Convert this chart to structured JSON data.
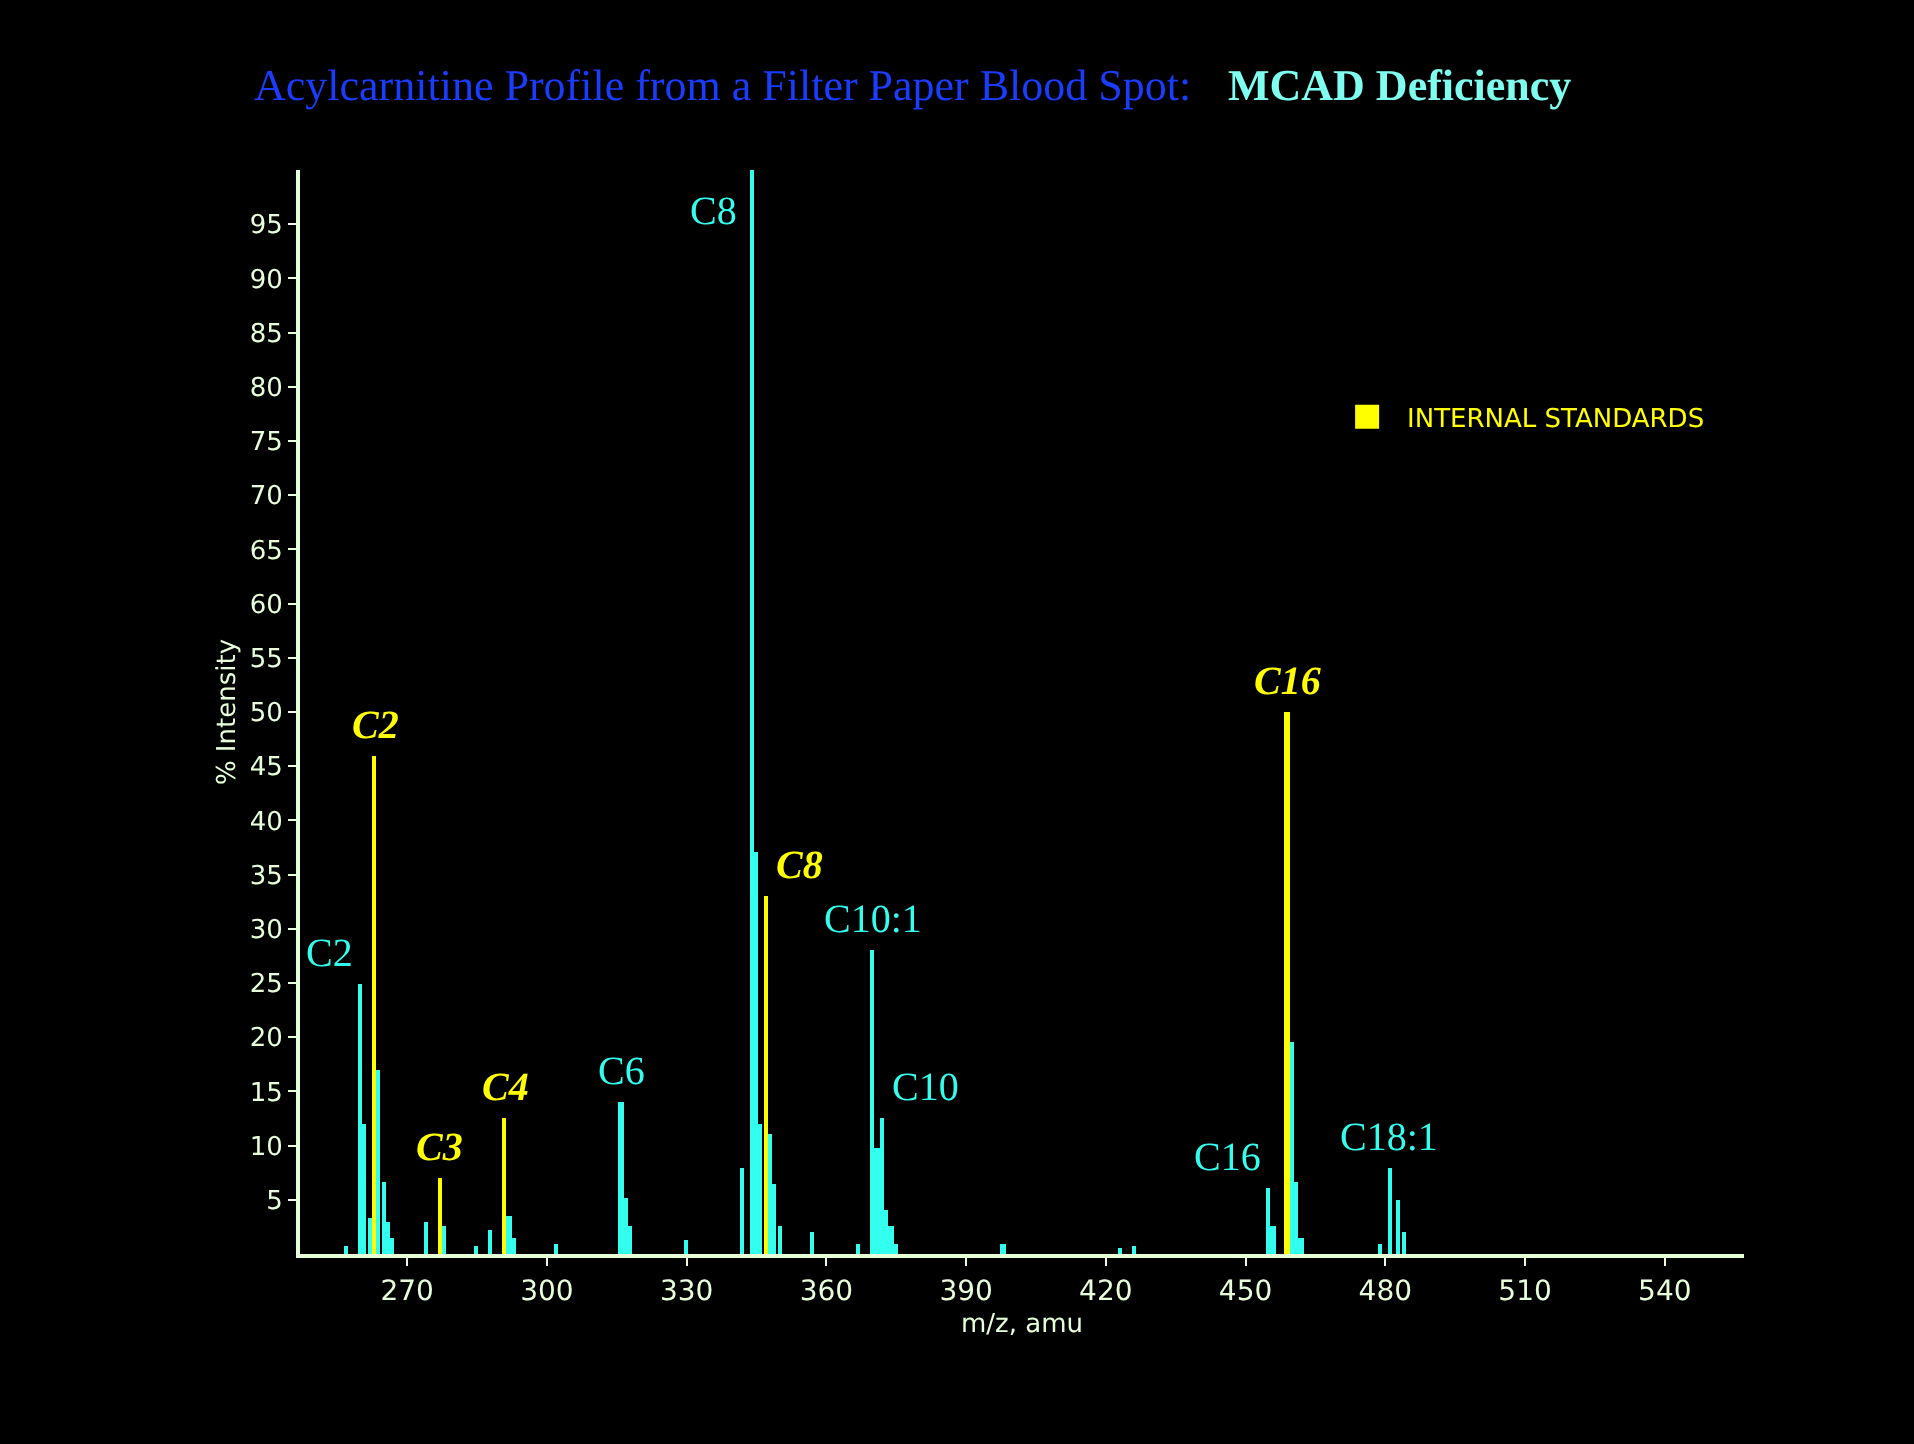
{
  "chart_data": {
    "type": "bar",
    "title": "Acylcarnitine Profile from a Filter Paper Blood Spot:",
    "subtitle": "MCAD Deficiency",
    "xlabel": "m/z, amu",
    "ylabel": "% Intensity",
    "series": [
      {
        "color": "#33ffee",
        "x": [
          257,
          260,
          261,
          262,
          264,
          265,
          266,
          267,
          274,
          278,
          285,
          288,
          292,
          293,
          302,
          316,
          317,
          318,
          330,
          342,
          344,
          345,
          346,
          348,
          349,
          350,
          357,
          367,
          370,
          371,
          372,
          373,
          374,
          375,
          398,
          423,
          426,
          455,
          456,
          460,
          461,
          462,
          479,
          481,
          483,
          484
        ],
        "values": [
          0.7,
          25,
          12,
          3.3,
          17,
          6.7,
          3,
          1.5,
          3,
          2.5,
          0.8,
          2.3,
          3.5,
          1.5,
          1,
          14,
          5.2,
          2.5,
          1.3,
          8,
          100,
          37,
          12,
          11,
          6.5,
          2.5,
          2,
          1,
          28,
          9.7,
          12.5,
          4,
          2.5,
          1,
          1,
          0.6,
          0.7,
          6,
          2.5,
          19.5,
          6.7,
          1.5,
          1,
          8,
          5,
          2
        ]
      },
      {
        "name": "INTERNAL STANDARDS",
        "color": "#ffff00",
        "x": [
          263,
          277,
          291,
          347,
          459
        ],
        "values": [
          46,
          7,
          12.5,
          33,
          50
        ]
      }
    ],
    "annotations": [
      {
        "text": "C2",
        "x": 260,
        "y": 25
      },
      {
        "text": "C2",
        "x": 263,
        "y": 46
      },
      {
        "text": "C3",
        "x": 277,
        "y": 7
      },
      {
        "text": "C4",
        "x": 291,
        "y": 12.5
      },
      {
        "text": "C6",
        "x": 316,
        "y": 14
      },
      {
        "text": "C8",
        "x": 344,
        "y": 100
      },
      {
        "text": "C8",
        "x": 347,
        "y": 33
      },
      {
        "text": "C10:1",
        "x": 370,
        "y": 28
      },
      {
        "text": "C10",
        "x": 372,
        "y": 12.5
      },
      {
        "text": "C16",
        "x": 455,
        "y": 6
      },
      {
        "text": "C16",
        "x": 459,
        "y": 50
      },
      {
        "text": "C18:1",
        "x": 481,
        "y": 8
      }
    ],
    "xlim": [
      247,
      557
    ],
    "xticks": [
      270,
      300,
      330,
      360,
      390,
      420,
      450,
      480,
      510,
      540
    ],
    "ylim": [
      0,
      100
    ],
    "yticks": [
      5,
      10,
      15,
      20,
      25,
      30,
      35,
      40,
      45,
      50,
      55,
      60,
      65,
      70,
      75,
      80,
      85,
      90,
      95
    ],
    "grid": false,
    "legend": "top right"
  }
}
